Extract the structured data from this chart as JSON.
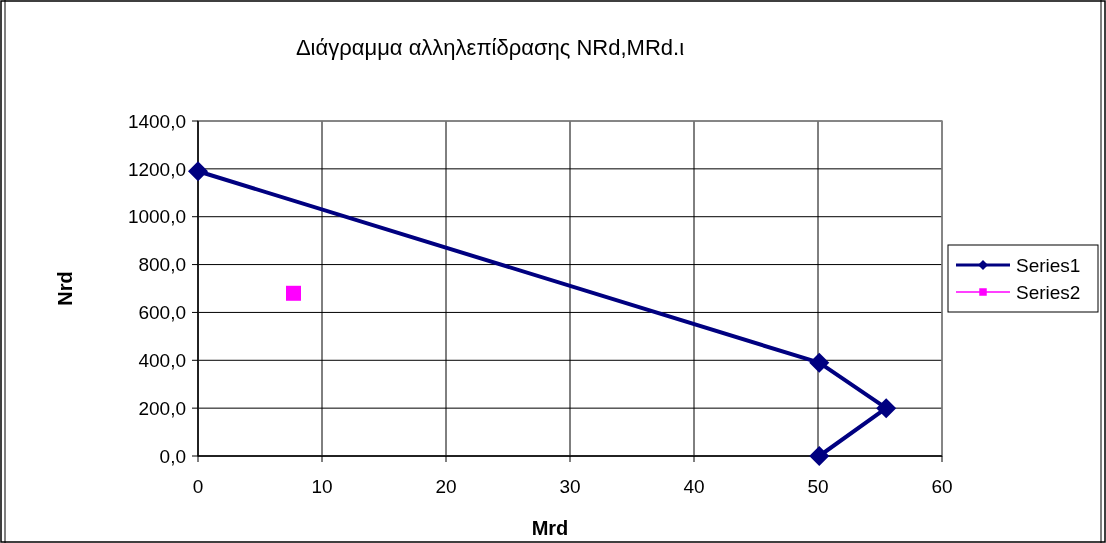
{
  "chart_data": {
    "type": "line",
    "title": "Διάγραμμα αλληλεπίδρασης NRd,MRd.ι",
    "xlabel": "Mrd",
    "ylabel": "Nrd",
    "series": [
      {
        "name": "Series1",
        "color": "#000080",
        "x": [
          0,
          50.1,
          55.5,
          50.1
        ],
        "values": [
          1190,
          390,
          200,
          0
        ],
        "marker": "diamond"
      },
      {
        "name": "Series2",
        "color": "#ff00ff",
        "x": [
          7.7
        ],
        "values": [
          680
        ],
        "marker": "square"
      }
    ],
    "xlim": [
      0,
      60
    ],
    "xticks": [
      0,
      10,
      20,
      30,
      40,
      50,
      60
    ],
    "ylim": [
      0,
      1400
    ],
    "yticks": [
      {
        "value": 0,
        "label": "0,0"
      },
      {
        "value": 200,
        "label": "200,0"
      },
      {
        "value": 400,
        "label": "400,0"
      },
      {
        "value": 600,
        "label": "600,0"
      },
      {
        "value": 800,
        "label": "800,0"
      },
      {
        "value": 1000,
        "label": "1000,0"
      },
      {
        "value": 1200,
        "label": "1200,0"
      },
      {
        "value": 1400,
        "label": "1400,0"
      }
    ],
    "grid": true,
    "legend": "right"
  }
}
